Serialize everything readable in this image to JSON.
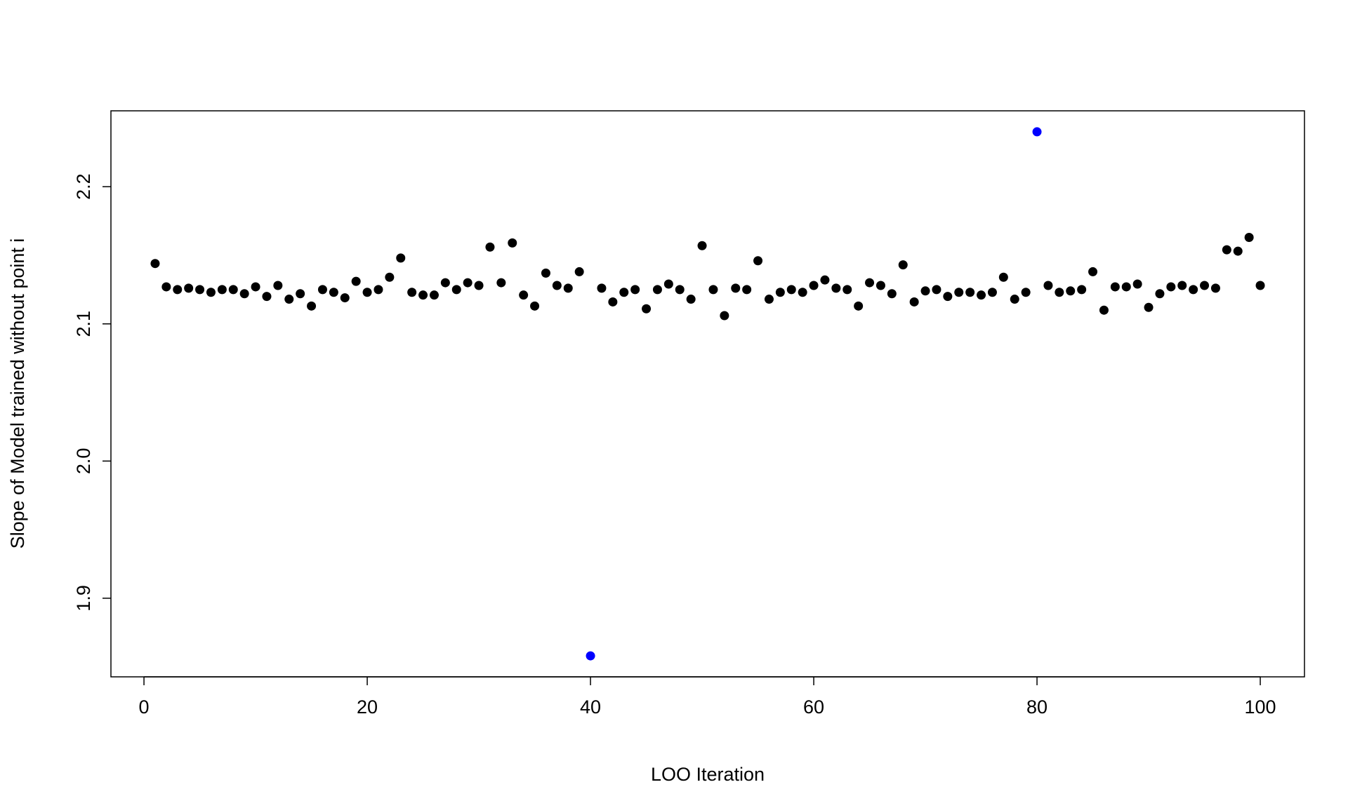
{
  "chart_data": {
    "type": "scatter",
    "x_label": "LOO Iteration",
    "y_label": "Slope of Model trained without point i",
    "x": [
      1,
      2,
      3,
      4,
      5,
      6,
      7,
      8,
      9,
      10,
      11,
      12,
      13,
      14,
      15,
      16,
      17,
      18,
      19,
      20,
      21,
      22,
      23,
      24,
      25,
      26,
      27,
      28,
      29,
      30,
      31,
      32,
      33,
      34,
      35,
      36,
      37,
      38,
      39,
      40,
      41,
      42,
      43,
      44,
      45,
      46,
      47,
      48,
      49,
      50,
      51,
      52,
      53,
      54,
      55,
      56,
      57,
      58,
      59,
      60,
      61,
      62,
      63,
      64,
      65,
      66,
      67,
      68,
      69,
      70,
      71,
      72,
      73,
      74,
      75,
      76,
      77,
      78,
      79,
      80,
      81,
      82,
      83,
      84,
      85,
      86,
      87,
      88,
      89,
      90,
      91,
      92,
      93,
      94,
      95,
      96,
      97,
      98,
      99,
      100
    ],
    "values": [
      2.144,
      2.127,
      2.125,
      2.126,
      2.125,
      2.123,
      2.125,
      2.125,
      2.122,
      2.127,
      2.12,
      2.128,
      2.118,
      2.122,
      2.113,
      2.125,
      2.123,
      2.119,
      2.131,
      2.123,
      2.125,
      2.134,
      2.148,
      2.123,
      2.121,
      2.121,
      2.13,
      2.125,
      2.13,
      2.128,
      2.156,
      2.13,
      2.159,
      2.121,
      2.113,
      2.137,
      2.128,
      2.126,
      2.138,
      1.858,
      2.126,
      2.116,
      2.123,
      2.125,
      2.111,
      2.125,
      2.129,
      2.125,
      2.118,
      2.157,
      2.125,
      2.106,
      2.126,
      2.125,
      2.146,
      2.118,
      2.123,
      2.125,
      2.123,
      2.128,
      2.132,
      2.126,
      2.125,
      2.113,
      2.13,
      2.128,
      2.122,
      2.143,
      2.116,
      2.124,
      2.125,
      2.12,
      2.123,
      2.123,
      2.121,
      2.123,
      2.134,
      2.118,
      2.123,
      2.24,
      2.128,
      2.123,
      2.124,
      2.125,
      2.138,
      2.11,
      2.127,
      2.127,
      2.129,
      2.112,
      2.122,
      2.127,
      2.128,
      2.125,
      2.128,
      2.126,
      2.154,
      2.153,
      2.163,
      2.128
    ],
    "point_colors": [
      "#000000",
      "#000000",
      "#000000",
      "#000000",
      "#000000",
      "#000000",
      "#000000",
      "#000000",
      "#000000",
      "#000000",
      "#000000",
      "#000000",
      "#000000",
      "#000000",
      "#000000",
      "#000000",
      "#000000",
      "#000000",
      "#000000",
      "#000000",
      "#000000",
      "#000000",
      "#000000",
      "#000000",
      "#000000",
      "#000000",
      "#000000",
      "#000000",
      "#000000",
      "#000000",
      "#000000",
      "#000000",
      "#000000",
      "#000000",
      "#000000",
      "#000000",
      "#000000",
      "#000000",
      "#000000",
      "#0000ff",
      "#000000",
      "#000000",
      "#000000",
      "#000000",
      "#000000",
      "#000000",
      "#000000",
      "#000000",
      "#000000",
      "#000000",
      "#000000",
      "#000000",
      "#000000",
      "#000000",
      "#000000",
      "#000000",
      "#000000",
      "#000000",
      "#000000",
      "#000000",
      "#000000",
      "#000000",
      "#000000",
      "#000000",
      "#000000",
      "#000000",
      "#000000",
      "#000000",
      "#000000",
      "#000000",
      "#000000",
      "#000000",
      "#000000",
      "#000000",
      "#000000",
      "#000000",
      "#000000",
      "#000000",
      "#000000",
      "#0000ff",
      "#000000",
      "#000000",
      "#000000",
      "#000000",
      "#000000",
      "#000000",
      "#000000",
      "#000000",
      "#000000",
      "#000000",
      "#000000",
      "#000000",
      "#000000",
      "#000000",
      "#000000",
      "#000000",
      "#000000",
      "#000000",
      "#000000",
      "#000000"
    ],
    "xlim": [
      -2.96,
      103.96
    ],
    "ylim": [
      1.8427,
      2.2553
    ],
    "xticks": [
      0,
      20,
      40,
      60,
      80,
      100
    ],
    "yticks": [
      1.9,
      {
        "value": 2,
        "label": "2.0"
      },
      2.1,
      2.2
    ],
    "grid": false
  }
}
